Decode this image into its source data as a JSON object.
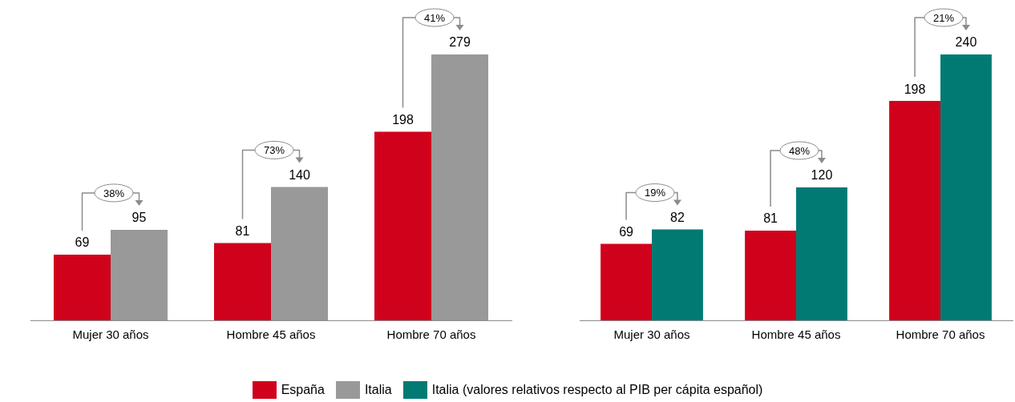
{
  "chart_data": [
    {
      "type": "bar",
      "categories": [
        "Mujer 30 años",
        "Hombre 45 años",
        "Hombre 70 años"
      ],
      "data_labels": true,
      "legend": "bottom",
      "series": [
        {
          "name": "España",
          "color": "#d0021b",
          "values": [
            69,
            81,
            198
          ]
        },
        {
          "name": "Italia",
          "color": "#999999",
          "values": [
            95,
            140,
            279
          ]
        }
      ],
      "annotations": [
        "38%",
        "73%",
        "41%"
      ]
    },
    {
      "type": "bar",
      "categories": [
        "Mujer 30 años",
        "Hombre 45 años",
        "Hombre 70 años"
      ],
      "data_labels": true,
      "legend": "bottom",
      "series": [
        {
          "color": "#d0021b",
          "values": [
            69,
            81,
            198
          ]
        },
        {
          "name": "Italia (valores relativos respecto al PIB per cápita español)",
          "color": "#007a73",
          "values": [
            82,
            120,
            240
          ]
        }
      ],
      "annotations": [
        "19%",
        "48%",
        "21%"
      ]
    }
  ]
}
